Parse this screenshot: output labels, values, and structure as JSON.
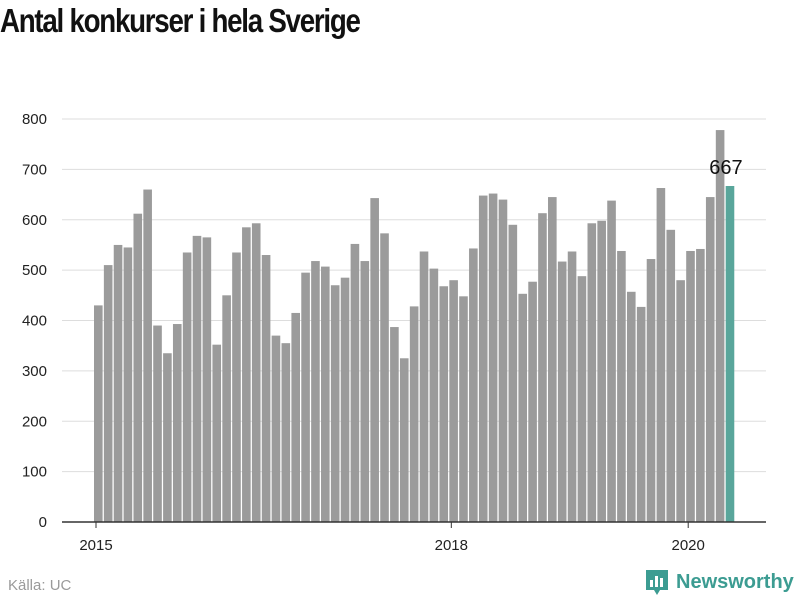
{
  "title": "Antal konkurser i hela Sverige",
  "source": "Källa: UC",
  "brand": "Newsworthy",
  "colors": {
    "bar": "#9b9b9b",
    "highlight": "#59a69b",
    "grid": "#dddddd",
    "brand": "#3c9c92"
  },
  "chart_data": {
    "type": "bar",
    "title": "Antal konkurser i hela Sverige",
    "ylim": [
      0,
      800
    ],
    "yticks": [
      0,
      100,
      200,
      300,
      400,
      500,
      600,
      700,
      800
    ],
    "xtick_labels": [
      {
        "label": "2015",
        "index": 0
      },
      {
        "label": "2018",
        "index": 36
      },
      {
        "label": "2020",
        "index": 60
      }
    ],
    "grid": true,
    "highlight_label": "667",
    "values": [
      430,
      510,
      550,
      545,
      612,
      660,
      390,
      335,
      393,
      535,
      568,
      565,
      352,
      450,
      535,
      585,
      593,
      530,
      370,
      355,
      415,
      495,
      518,
      507,
      470,
      485,
      552,
      518,
      643,
      573,
      387,
      325,
      428,
      537,
      503,
      468,
      480,
      448,
      543,
      648,
      652,
      640,
      590,
      453,
      477,
      613,
      645,
      517,
      537,
      488,
      593,
      598,
      638,
      538,
      457,
      427,
      522,
      663,
      580,
      480,
      538,
      542,
      645,
      778,
      667
    ]
  }
}
